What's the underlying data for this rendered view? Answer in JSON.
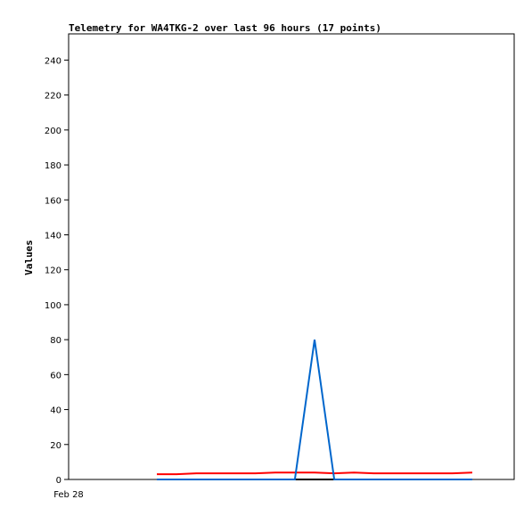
{
  "chart_data": {
    "type": "line",
    "title": "Telemetry for WA4TKG-2 over last 96 hours (17 points)",
    "xlabel": "",
    "ylabel": "Values",
    "x_tick_labels": [
      "Feb 28"
    ],
    "ylim": [
      0,
      255
    ],
    "y_ticks": [
      0,
      20,
      40,
      60,
      80,
      100,
      120,
      140,
      160,
      180,
      200,
      220,
      240
    ],
    "x": [
      1,
      2,
      3,
      4,
      5,
      6,
      7,
      8,
      9,
      10,
      11,
      12,
      13,
      14,
      15,
      16,
      17
    ],
    "grid": false,
    "legend": "none",
    "series": [
      {
        "color": "#000000",
        "values": [
          0,
          0,
          0,
          0,
          0,
          0,
          0,
          0,
          0,
          0,
          0,
          0,
          0,
          0,
          0,
          0,
          0
        ]
      },
      {
        "color": "#ff0000",
        "values": [
          3,
          3,
          3.5,
          3.5,
          3.5,
          3.5,
          4,
          4,
          4,
          3.5,
          4,
          3.5,
          3.5,
          3.5,
          3.5,
          3.5,
          4
        ]
      },
      {
        "color": "#0066cc",
        "values": [
          0,
          0,
          0,
          0,
          0,
          0,
          0,
          0,
          80,
          0,
          0,
          0,
          0,
          0,
          0,
          0,
          0
        ]
      }
    ]
  }
}
